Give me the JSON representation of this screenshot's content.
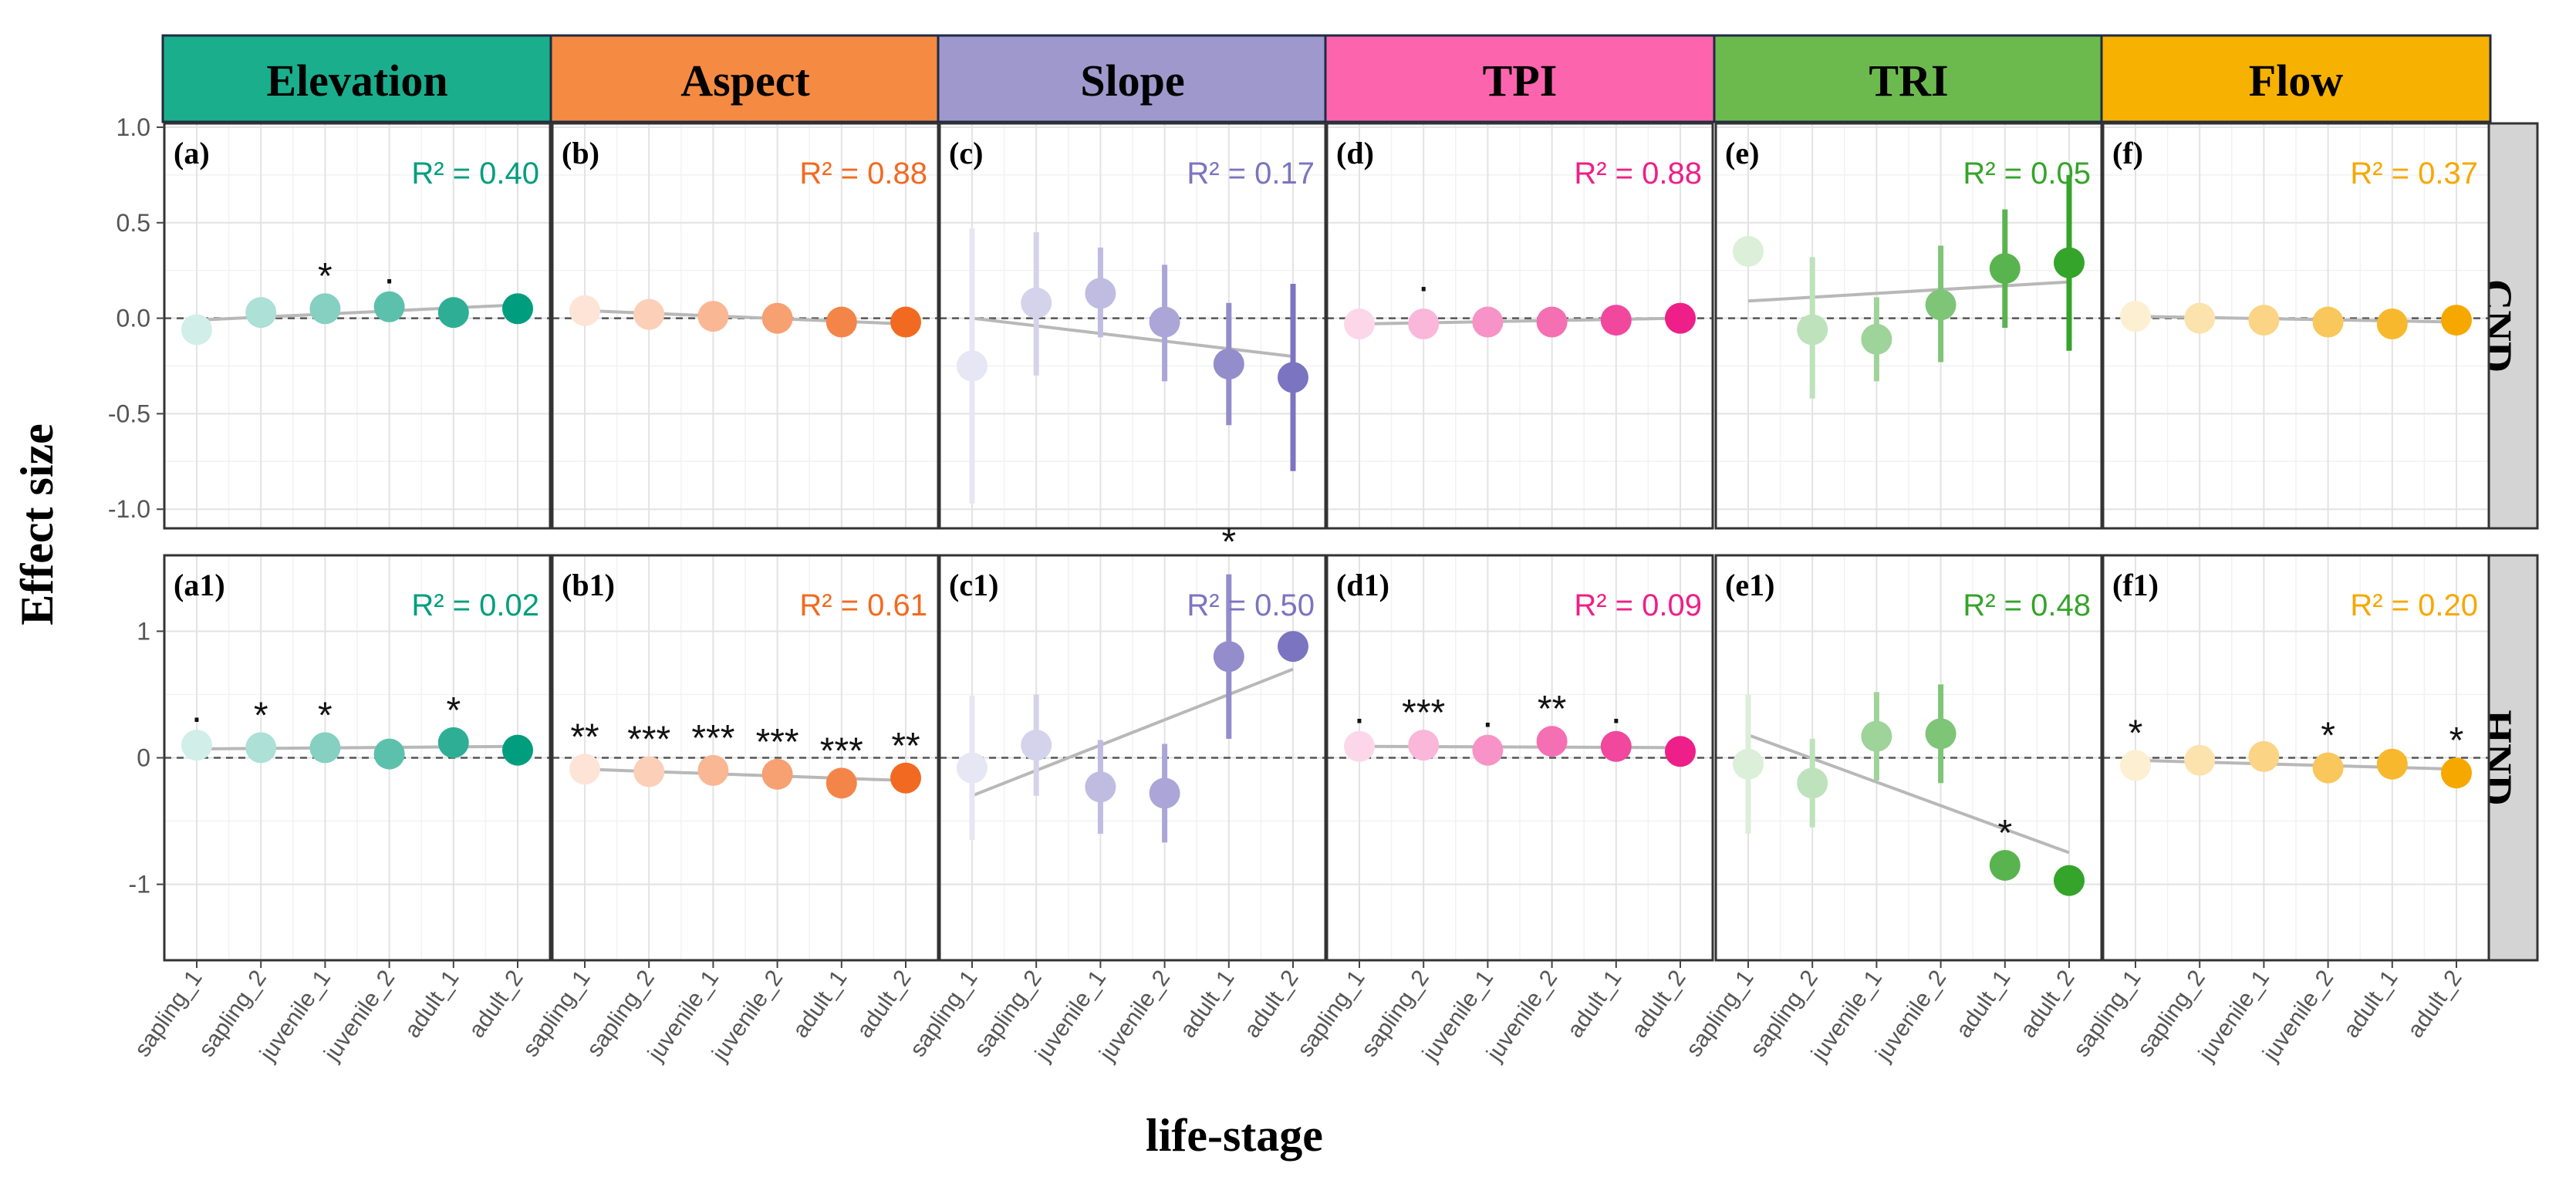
{
  "chart_data": {
    "type": "scatter",
    "title": "",
    "xlabel": "life-stage",
    "ylabel": "Effect size",
    "categories": [
      "sapling_1",
      "sapling_2",
      "juvenile_1",
      "juvenile_2",
      "adult_1",
      "adult_2"
    ],
    "rows": [
      {
        "name": "CND",
        "ylim": [
          -1.1,
          1.02
        ],
        "yticks": [
          1.0,
          0.5,
          0.0,
          -0.5,
          -1.0
        ],
        "ytick_labels": [
          "1.0",
          "0.5",
          "0.0",
          "-0.5",
          "-1.0"
        ]
      },
      {
        "name": "HND",
        "ylim": [
          -1.6,
          1.6
        ],
        "yticks": [
          1,
          0,
          -1
        ],
        "ytick_labels": [
          "1",
          "0",
          "-1"
        ]
      }
    ],
    "variables": [
      {
        "name": "Elevation",
        "color": "#009e7e",
        "header_color": "#1aae8c"
      },
      {
        "name": "Aspect",
        "color": "#f26a21",
        "header_color": "#f58a42"
      },
      {
        "name": "Slope",
        "color": "#7b74c0",
        "header_color": "#9e98cc"
      },
      {
        "name": "TPI",
        "color": "#ee1f88",
        "header_color": "#fc65ad"
      },
      {
        "name": "TRI",
        "color": "#35a42a",
        "header_color": "#6cba4e"
      },
      {
        "name": "Flow",
        "color": "#f6a800",
        "header_color": "#f7b100"
      }
    ],
    "panels": [
      {
        "row": 0,
        "col": 0,
        "label": "(a)",
        "r2": "R² = 0.40",
        "values": [
          -0.06,
          0.03,
          0.05,
          0.06,
          0.03,
          0.05
        ],
        "lower": [
          -0.06,
          0.03,
          0.05,
          0.06,
          0.03,
          0.05
        ],
        "upper": [
          -0.06,
          0.03,
          0.05,
          0.06,
          0.03,
          0.05
        ],
        "signif": [
          "",
          "",
          "*",
          ".",
          "",
          ""
        ],
        "trend": [
          -0.01,
          0.07
        ]
      },
      {
        "row": 0,
        "col": 1,
        "label": "(b)",
        "r2": "R² = 0.88",
        "values": [
          0.04,
          0.02,
          0.01,
          0.0,
          -0.02,
          -0.02
        ],
        "lower": [
          0.04,
          0.02,
          0.01,
          0.0,
          -0.02,
          -0.02
        ],
        "upper": [
          0.04,
          0.02,
          0.01,
          0.0,
          -0.02,
          -0.02
        ],
        "signif": [
          "",
          "",
          "",
          "",
          "",
          ""
        ],
        "trend": [
          0.04,
          -0.03
        ]
      },
      {
        "row": 0,
        "col": 2,
        "label": "(c)",
        "r2": "R² = 0.17",
        "values": [
          -0.25,
          0.08,
          0.13,
          -0.02,
          -0.24,
          -0.31
        ],
        "lower": [
          -0.97,
          -0.3,
          -0.1,
          -0.33,
          -0.56,
          -0.8
        ],
        "upper": [
          0.47,
          0.45,
          0.37,
          0.28,
          0.08,
          0.18
        ],
        "signif": [
          "",
          "",
          "",
          "",
          "",
          ""
        ],
        "trend": [
          0.0,
          -0.2
        ]
      },
      {
        "row": 0,
        "col": 3,
        "label": "(d)",
        "r2": "R² = 0.88",
        "values": [
          -0.03,
          -0.03,
          -0.02,
          -0.02,
          -0.01,
          0.0
        ],
        "lower": [
          -0.11,
          -0.08,
          -0.05,
          -0.04,
          -0.03,
          -0.02
        ],
        "upper": [
          0.05,
          0.02,
          0.01,
          0.0,
          0.01,
          0.02
        ],
        "signif": [
          "",
          ".",
          "",
          "",
          "",
          ""
        ],
        "trend": [
          -0.03,
          0.0
        ]
      },
      {
        "row": 0,
        "col": 4,
        "label": "(e)",
        "r2": "R² = 0.05",
        "values": [
          0.35,
          -0.06,
          -0.11,
          0.07,
          0.26,
          0.29
        ],
        "lower": [
          0.35,
          -0.42,
          -0.33,
          -0.23,
          -0.05,
          -0.17
        ],
        "upper": [
          0.35,
          0.32,
          0.11,
          0.38,
          0.57,
          0.75
        ],
        "signif": [
          "",
          "",
          "",
          "",
          "",
          ""
        ],
        "trend": [
          0.09,
          0.19
        ]
      },
      {
        "row": 0,
        "col": 5,
        "label": "(f)",
        "r2": "R² = 0.37",
        "values": [
          0.01,
          0.0,
          -0.01,
          -0.02,
          -0.03,
          -0.01
        ],
        "lower": [
          0.01,
          0.0,
          -0.01,
          -0.02,
          -0.03,
          -0.01
        ],
        "upper": [
          0.01,
          0.0,
          -0.01,
          -0.02,
          -0.03,
          -0.01
        ],
        "signif": [
          "",
          "",
          "",
          "",
          "",
          ""
        ],
        "trend": [
          0.01,
          -0.02
        ]
      },
      {
        "row": 1,
        "col": 0,
        "label": "(a1)",
        "r2": "R² = 0.02",
        "values": [
          0.1,
          0.08,
          0.08,
          0.03,
          0.12,
          0.06
        ],
        "lower": [
          0.1,
          0.08,
          0.08,
          0.03,
          0.12,
          0.06
        ],
        "upper": [
          0.1,
          0.08,
          0.08,
          0.03,
          0.12,
          0.06
        ],
        "signif": [
          ".",
          "*",
          "*",
          "",
          "*",
          ""
        ],
        "trend": [
          0.07,
          0.09
        ]
      },
      {
        "row": 1,
        "col": 1,
        "label": "(b1)",
        "r2": "R² = 0.61",
        "values": [
          -0.09,
          -0.11,
          -0.1,
          -0.13,
          -0.2,
          -0.16
        ],
        "lower": [
          -0.09,
          -0.11,
          -0.1,
          -0.13,
          -0.2,
          -0.16
        ],
        "upper": [
          -0.09,
          -0.11,
          -0.1,
          -0.13,
          -0.2,
          -0.16
        ],
        "signif": [
          "**",
          "***",
          "***",
          "***",
          "***",
          "**"
        ],
        "trend": [
          -0.09,
          -0.18
        ]
      },
      {
        "row": 1,
        "col": 2,
        "label": "(c1)",
        "r2": "R² = 0.50",
        "values": [
          -0.08,
          0.1,
          -0.23,
          -0.28,
          0.8,
          0.88
        ],
        "lower": [
          -0.65,
          -0.3,
          -0.6,
          -0.67,
          0.15,
          0.88
        ],
        "upper": [
          0.49,
          0.5,
          0.14,
          0.11,
          1.45,
          0.88
        ],
        "signif": [
          "",
          "",
          "",
          "",
          "*",
          ""
        ],
        "trend": [
          -0.3,
          0.7
        ]
      },
      {
        "row": 1,
        "col": 3,
        "label": "(d1)",
        "r2": "R² = 0.09",
        "values": [
          0.09,
          0.1,
          0.06,
          0.13,
          0.09,
          0.05
        ],
        "lower": [
          0.09,
          0.1,
          0.06,
          0.13,
          0.09,
          0.05
        ],
        "upper": [
          0.09,
          0.1,
          0.06,
          0.13,
          0.09,
          0.05
        ],
        "signif": [
          ".",
          "***",
          ".",
          "**",
          ".",
          ""
        ],
        "trend": [
          0.09,
          0.08
        ]
      },
      {
        "row": 1,
        "col": 4,
        "label": "(e1)",
        "r2": "R² = 0.48",
        "values": [
          -0.05,
          -0.2,
          0.17,
          0.19,
          -0.85,
          -0.97
        ],
        "lower": [
          -0.6,
          -0.55,
          -0.18,
          -0.2,
          -0.85,
          -0.97
        ],
        "upper": [
          0.5,
          0.15,
          0.52,
          0.58,
          -0.85,
          -0.97
        ],
        "signif": [
          "",
          "",
          "",
          "",
          "*",
          ""
        ],
        "trend": [
          0.18,
          -0.75
        ]
      },
      {
        "row": 1,
        "col": 5,
        "label": "(f1)",
        "r2": "R² = 0.20",
        "values": [
          -0.06,
          -0.02,
          0.01,
          -0.08,
          -0.05,
          -0.12
        ],
        "lower": [
          -0.06,
          -0.02,
          0.01,
          -0.08,
          -0.05,
          -0.12
        ],
        "upper": [
          -0.06,
          -0.02,
          0.01,
          -0.08,
          -0.05,
          -0.12
        ],
        "signif": [
          "*",
          "",
          "",
          "*",
          "",
          "*"
        ],
        "trend": [
          -0.02,
          -0.09
        ]
      }
    ]
  }
}
